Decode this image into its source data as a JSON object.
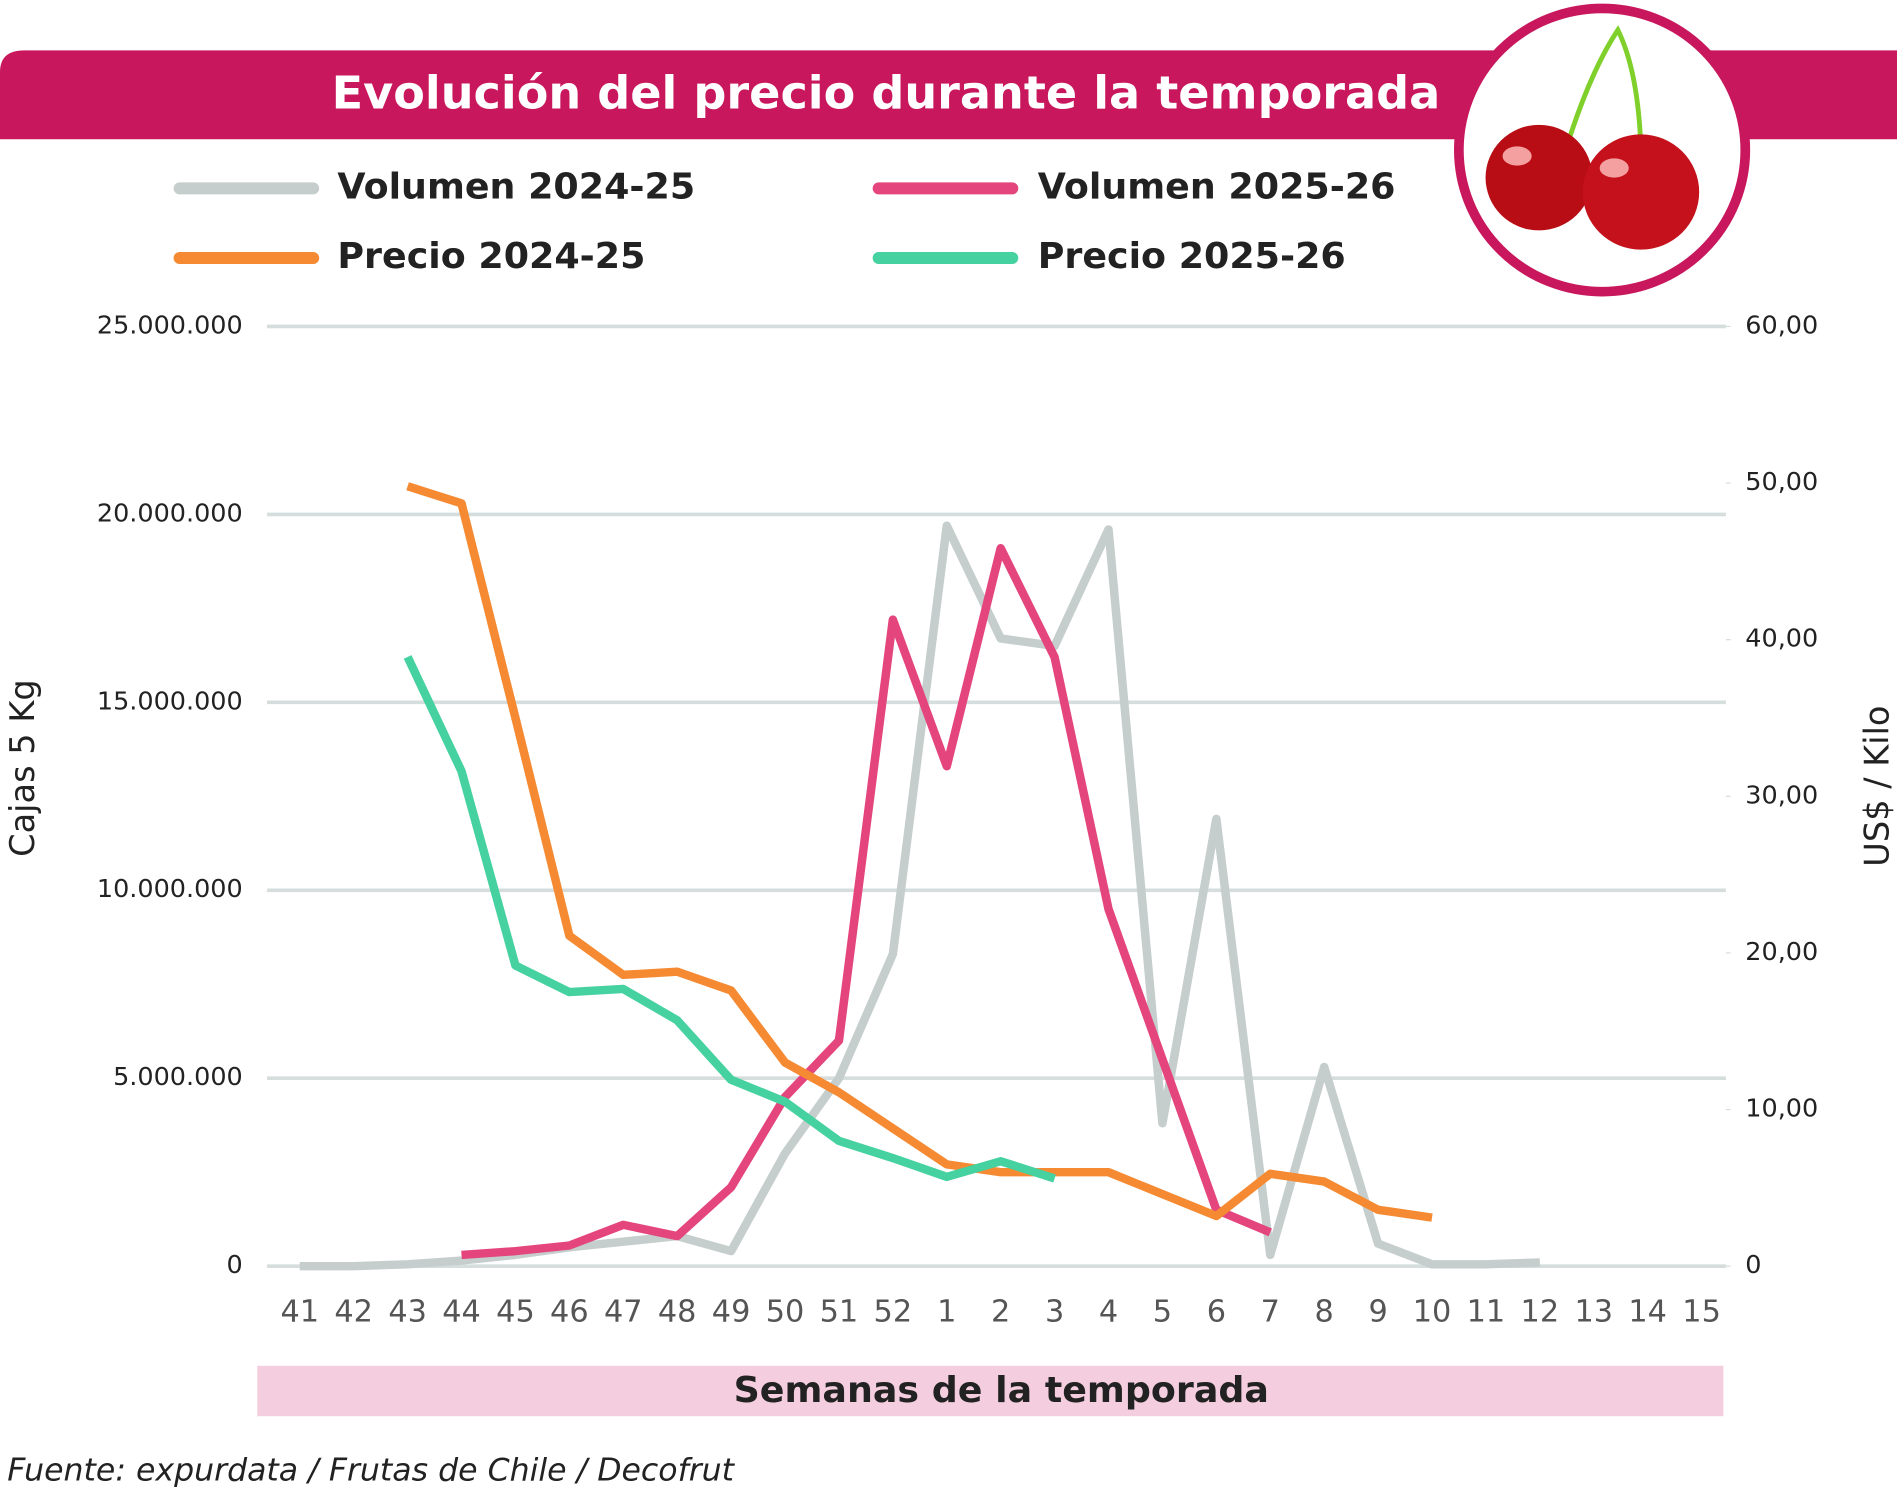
{
  "chart_data": {
    "type": "line",
    "title": "Evolución del precio durante  la temporada",
    "x_label": "Semanas de la temporada",
    "y_label": "Cajas 5 Kg",
    "y2_label": "US$ / Kilo",
    "source": "Fuente: expurdata / Frutas de Chile / Decofrut",
    "categories": [
      "41",
      "42",
      "43",
      "44",
      "45",
      "46",
      "47",
      "48",
      "49",
      "50",
      "51",
      "52",
      "1",
      "2",
      "3",
      "4",
      "5",
      "6",
      "7",
      "8",
      "9",
      "10",
      "11",
      "12",
      "13",
      "14",
      "15"
    ],
    "series": [
      {
        "name": "Volumen 2024-25",
        "color": "#c5cecc",
        "axis": "y",
        "values": [
          0,
          0,
          50000,
          150000,
          300000,
          500000,
          650000,
          800000,
          400000,
          3000000,
          5000000,
          8300000,
          19700000,
          16700000,
          16500000,
          19600000,
          3800000,
          11900000,
          300000,
          5300000,
          600000,
          50000,
          50000,
          100000,
          null,
          null,
          null
        ]
      },
      {
        "name": "Volumen 2025-26",
        "color": "#e4457c",
        "axis": "y",
        "values": [
          null,
          null,
          null,
          300000,
          400000,
          550000,
          1100000,
          800000,
          2100000,
          4500000,
          6000000,
          17200000,
          13300000,
          19100000,
          16200000,
          9500000,
          5500000,
          1500000,
          900000,
          null,
          null,
          null,
          null,
          null,
          null,
          null,
          null
        ]
      },
      {
        "name": "Precio 2024-25",
        "color": "#f58a32",
        "axis": "y2",
        "values": [
          null,
          null,
          49.8,
          48.7,
          35,
          21.1,
          18.6,
          18.8,
          17.6,
          13,
          11.1,
          8.8,
          6.5,
          6,
          6,
          6,
          4.6,
          3.2,
          5.9,
          5.4,
          3.6,
          3.1,
          null,
          null,
          null,
          null,
          null
        ]
      },
      {
        "name": "Precio 2025-26",
        "color": "#45d1a0",
        "axis": "y2",
        "values": [
          null,
          null,
          38.9,
          31.6,
          19.2,
          17.5,
          17.7,
          15.7,
          11.9,
          10.5,
          8,
          6.9,
          5.7,
          6.7,
          5.6,
          null,
          null,
          null,
          null,
          null,
          null,
          null,
          null,
          null,
          null,
          null,
          null
        ]
      }
    ],
    "ylim": [
      0,
      25000000
    ],
    "yticks": [
      {
        "value": 0,
        "label": "0"
      },
      {
        "value": 5000000,
        "label": "5.000.000"
      },
      {
        "value": 10000000,
        "label": "10.000.000"
      },
      {
        "value": 15000000,
        "label": "15.000.000"
      },
      {
        "value": 20000000,
        "label": "20.000.000"
      },
      {
        "value": 25000000,
        "label": "25.000.000"
      }
    ],
    "y2lim": [
      0,
      60
    ],
    "y2ticks": [
      {
        "value": 0,
        "label": "0"
      },
      {
        "value": 10,
        "label": "10,00"
      },
      {
        "value": 20,
        "label": "20,00"
      },
      {
        "value": 30,
        "label": "30,00"
      },
      {
        "value": 40,
        "label": "40,00"
      },
      {
        "value": 50,
        "label": "50,00"
      },
      {
        "value": 60,
        "label": "60,00"
      }
    ],
    "grid": true
  }
}
